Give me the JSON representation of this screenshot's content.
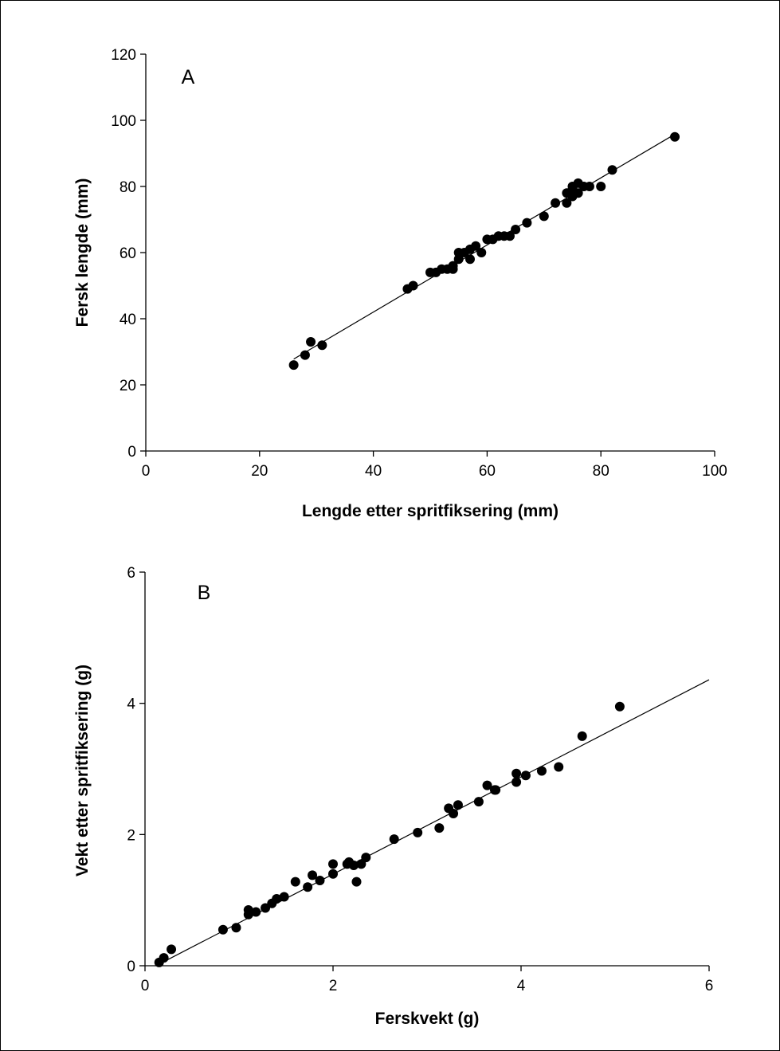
{
  "chart_data": [
    {
      "type": "scatter",
      "panel_label": "A",
      "xlabel": "Lengde etter spritfiksering (mm)",
      "ylabel": "Fersk lengde (mm)",
      "xlim": [
        0,
        100
      ],
      "ylim": [
        0,
        120
      ],
      "xticks": [
        0,
        20,
        40,
        60,
        80,
        100
      ],
      "yticks": [
        0,
        20,
        40,
        60,
        80,
        100,
        120
      ],
      "grid": false,
      "points": [
        [
          26,
          26
        ],
        [
          28,
          29
        ],
        [
          29,
          33
        ],
        [
          31,
          32
        ],
        [
          46,
          49
        ],
        [
          47,
          50
        ],
        [
          50,
          54
        ],
        [
          51,
          54
        ],
        [
          52,
          55
        ],
        [
          53,
          55
        ],
        [
          54,
          55
        ],
        [
          54,
          56
        ],
        [
          55,
          58
        ],
        [
          55,
          60
        ],
        [
          56,
          60
        ],
        [
          57,
          58
        ],
        [
          57,
          61
        ],
        [
          58,
          62
        ],
        [
          59,
          60
        ],
        [
          60,
          64
        ],
        [
          61,
          64
        ],
        [
          62,
          65
        ],
        [
          63,
          65
        ],
        [
          64,
          65
        ],
        [
          65,
          67
        ],
        [
          67,
          69
        ],
        [
          70,
          71
        ],
        [
          72,
          75
        ],
        [
          74,
          75
        ],
        [
          74,
          78
        ],
        [
          75,
          77
        ],
        [
          75,
          79
        ],
        [
          75,
          80
        ],
        [
          76,
          78
        ],
        [
          76,
          81
        ],
        [
          77,
          80
        ],
        [
          78,
          80
        ],
        [
          80,
          80
        ],
        [
          82,
          85
        ],
        [
          93,
          95
        ]
      ],
      "fit_line": {
        "x": [
          26,
          93
        ],
        "y": [
          27.8,
          95.8
        ]
      }
    },
    {
      "type": "scatter",
      "panel_label": "B",
      "xlabel": "Ferskvekt (g)",
      "ylabel": "Vekt etter spritfiksering (g)",
      "xlim": [
        0,
        6
      ],
      "ylim": [
        0,
        6
      ],
      "xticks": [
        0,
        2,
        4,
        6
      ],
      "yticks": [
        0,
        2,
        4,
        6
      ],
      "grid": false,
      "points": [
        [
          0.15,
          0.05
        ],
        [
          0.2,
          0.12
        ],
        [
          0.28,
          0.25
        ],
        [
          0.83,
          0.55
        ],
        [
          0.97,
          0.58
        ],
        [
          1.1,
          0.78
        ],
        [
          1.1,
          0.85
        ],
        [
          1.18,
          0.82
        ],
        [
          1.28,
          0.88
        ],
        [
          1.35,
          0.95
        ],
        [
          1.4,
          1.02
        ],
        [
          1.48,
          1.05
        ],
        [
          1.6,
          1.28
        ],
        [
          1.73,
          1.2
        ],
        [
          1.78,
          1.38
        ],
        [
          1.86,
          1.3
        ],
        [
          2.0,
          1.4
        ],
        [
          2.0,
          1.55
        ],
        [
          2.15,
          1.55
        ],
        [
          2.17,
          1.58
        ],
        [
          2.22,
          1.53
        ],
        [
          2.25,
          1.28
        ],
        [
          2.3,
          1.55
        ],
        [
          2.35,
          1.65
        ],
        [
          2.65,
          1.93
        ],
        [
          2.9,
          2.03
        ],
        [
          3.13,
          2.1
        ],
        [
          3.23,
          2.4
        ],
        [
          3.28,
          2.32
        ],
        [
          3.33,
          2.45
        ],
        [
          3.55,
          2.5
        ],
        [
          3.64,
          2.75
        ],
        [
          3.72,
          2.68
        ],
        [
          3.73,
          2.68
        ],
        [
          3.95,
          2.8
        ],
        [
          3.95,
          2.93
        ],
        [
          4.05,
          2.9
        ],
        [
          4.22,
          2.97
        ],
        [
          4.4,
          3.03
        ],
        [
          4.65,
          3.5
        ],
        [
          5.05,
          3.95
        ]
      ],
      "fit_line": {
        "x": [
          0.13,
          6.0
        ],
        "y": [
          0.01,
          4.36
        ]
      }
    }
  ]
}
